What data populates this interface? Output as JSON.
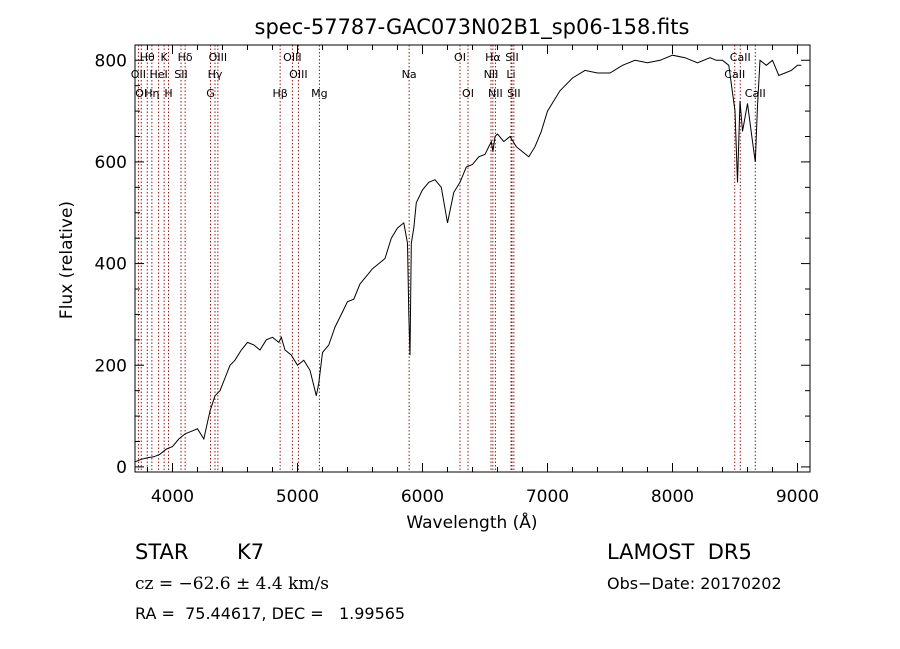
{
  "chart_data": {
    "type": "line",
    "title": "spec-57787-GAC073N02B1_sp06-158.fits",
    "xlabel": "Wavelength (Å)",
    "ylabel": "Flux (relative)",
    "xlim": [
      3700,
      9100
    ],
    "ylim": [
      -10,
      830
    ],
    "x_ticks": [
      4000,
      5000,
      6000,
      7000,
      8000,
      9000
    ],
    "x_tick_labels": [
      "4000",
      "5000",
      "6000",
      "7000",
      "8000",
      "9000"
    ],
    "y_ticks": [
      0,
      200,
      400,
      600,
      800
    ],
    "y_tick_labels": [
      "0",
      "200",
      "400",
      "600",
      "800"
    ],
    "grid": false,
    "line_color": "#000000",
    "marker_color": "#8b0000",
    "spectrum": {
      "x": [
        3700,
        3750,
        3800,
        3850,
        3900,
        3950,
        4000,
        4050,
        4100,
        4150,
        4200,
        4250,
        4300,
        4340,
        4380,
        4420,
        4460,
        4500,
        4550,
        4600,
        4650,
        4700,
        4750,
        4800,
        4850,
        4870,
        4900,
        4950,
        5000,
        5050,
        5100,
        5150,
        5170,
        5200,
        5250,
        5300,
        5350,
        5400,
        5450,
        5500,
        5550,
        5600,
        5650,
        5700,
        5750,
        5800,
        5850,
        5880,
        5890,
        5900,
        5910,
        5930,
        5950,
        6000,
        6050,
        6100,
        6150,
        6200,
        6250,
        6300,
        6350,
        6400,
        6450,
        6500,
        6550,
        6563,
        6580,
        6600,
        6650,
        6700,
        6750,
        6800,
        6850,
        6900,
        6950,
        7000,
        7100,
        7200,
        7300,
        7400,
        7500,
        7600,
        7700,
        7800,
        7900,
        8000,
        8100,
        8200,
        8300,
        8350,
        8400,
        8450,
        8500,
        8520,
        8540,
        8560,
        8600,
        8640,
        8662,
        8680,
        8700,
        8750,
        8800,
        8850,
        8900,
        8950,
        9000,
        9030
      ],
      "y": [
        10,
        15,
        18,
        20,
        25,
        35,
        40,
        55,
        65,
        70,
        75,
        55,
        110,
        140,
        150,
        175,
        200,
        210,
        230,
        245,
        240,
        230,
        250,
        255,
        245,
        255,
        230,
        220,
        200,
        210,
        190,
        140,
        165,
        225,
        240,
        275,
        300,
        325,
        330,
        360,
        375,
        390,
        400,
        410,
        450,
        470,
        480,
        440,
        300,
        220,
        440,
        470,
        520,
        545,
        560,
        565,
        550,
        480,
        540,
        560,
        590,
        595,
        610,
        615,
        640,
        620,
        650,
        655,
        640,
        650,
        630,
        620,
        610,
        630,
        660,
        700,
        740,
        765,
        780,
        775,
        775,
        790,
        800,
        795,
        800,
        810,
        805,
        795,
        805,
        800,
        800,
        790,
        700,
        560,
        720,
        660,
        715,
        640,
        600,
        710,
        800,
        790,
        800,
        770,
        775,
        780,
        790,
        790
      ]
    },
    "line_markers": [
      {
        "x": 3727,
        "labels": [
          "OII"
        ],
        "rows": [
          2
        ]
      },
      {
        "x": 3750,
        "labels": [
          "OI"
        ],
        "rows": [
          3
        ]
      },
      {
        "x": 3798,
        "labels": [
          "Hθ"
        ],
        "rows": [
          1
        ]
      },
      {
        "x": 3835,
        "labels": [
          "Hη"
        ],
        "rows": [
          3
        ]
      },
      {
        "x": 3889,
        "labels": [
          "HeI"
        ],
        "rows": [
          2
        ]
      },
      {
        "x": 3933,
        "labels": [
          "K"
        ],
        "rows": [
          1
        ]
      },
      {
        "x": 3968,
        "labels": [
          "H"
        ],
        "rows": [
          3
        ]
      },
      {
        "x": 4068,
        "labels": [
          "SII"
        ],
        "rows": [
          2
        ]
      },
      {
        "x": 4101,
        "labels": [
          "Hδ"
        ],
        "rows": [
          1
        ]
      },
      {
        "x": 4304,
        "labels": [
          "G"
        ],
        "rows": [
          3
        ]
      },
      {
        "x": 4340,
        "labels": [
          "Hγ"
        ],
        "rows": [
          2
        ]
      },
      {
        "x": 4363,
        "labels": [
          "OIII"
        ],
        "rows": [
          1
        ]
      },
      {
        "x": 4861,
        "labels": [
          "Hβ"
        ],
        "rows": [
          3
        ]
      },
      {
        "x": 4959,
        "labels": [
          "OIII"
        ],
        "rows": [
          1
        ]
      },
      {
        "x": 5007,
        "labels": [
          "OIII"
        ],
        "rows": [
          2
        ]
      },
      {
        "x": 5175,
        "labels": [
          "Mg"
        ],
        "rows": [
          3
        ]
      },
      {
        "x": 5893,
        "labels": [
          "Na"
        ],
        "rows": [
          2
        ]
      },
      {
        "x": 6300,
        "labels": [
          "OI"
        ],
        "rows": [
          1
        ]
      },
      {
        "x": 6364,
        "labels": [
          "OI"
        ],
        "rows": [
          3
        ]
      },
      {
        "x": 6548,
        "labels": [
          "NII"
        ],
        "rows": [
          2
        ]
      },
      {
        "x": 6563,
        "labels": [
          "Hα"
        ],
        "rows": [
          1
        ]
      },
      {
        "x": 6583,
        "labels": [
          "NII"
        ],
        "rows": [
          3
        ]
      },
      {
        "x": 6708,
        "labels": [
          "Li"
        ],
        "rows": [
          2
        ]
      },
      {
        "x": 6716,
        "labels": [
          "SII"
        ],
        "rows": [
          1
        ]
      },
      {
        "x": 6731,
        "labels": [
          "SII"
        ],
        "rows": [
          3
        ]
      },
      {
        "x": 8498,
        "labels": [
          "CaII"
        ],
        "rows": [
          2
        ]
      },
      {
        "x": 8542,
        "labels": [
          "CaII"
        ],
        "rows": [
          1
        ]
      },
      {
        "x": 8662,
        "labels": [
          "CaII"
        ],
        "rows": [
          3
        ]
      }
    ]
  },
  "info": {
    "object_class": "STAR",
    "subclass": "K7",
    "survey": "LAMOST  DR5",
    "velocity": "cz = −62.6 ± 4.4 km/s",
    "obs_date": "Obs−Date: 20170202",
    "coords": "RA =  75.44617, DEC =   1.99565"
  }
}
